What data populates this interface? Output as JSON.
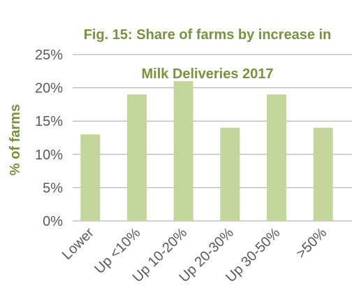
{
  "chart_data": {
    "type": "bar",
    "title": "Fig. 15: Share of farms by increase in Milk Deliveries 2017",
    "title_lines": [
      "Fig. 15: Share of farms by increase in",
      "Milk Deliveries 2017"
    ],
    "ylabel": "% of farms",
    "xlabel": "",
    "categories": [
      "Lower",
      "Up <10%",
      "Up 10-20%",
      "Up 20-30%",
      "Up 30-50%",
      ">50%"
    ],
    "values": [
      13,
      19,
      21,
      14,
      19,
      14
    ],
    "ylim": [
      0,
      25
    ],
    "yticks": [
      "0%",
      "5%",
      "10%",
      "15%",
      "20%",
      "25%"
    ],
    "grid": true,
    "legend": "none",
    "colors": {
      "bar": "#C3D69B",
      "title": "#77933C",
      "grid": "#A6A6A6",
      "axis_text": "#595959"
    }
  }
}
